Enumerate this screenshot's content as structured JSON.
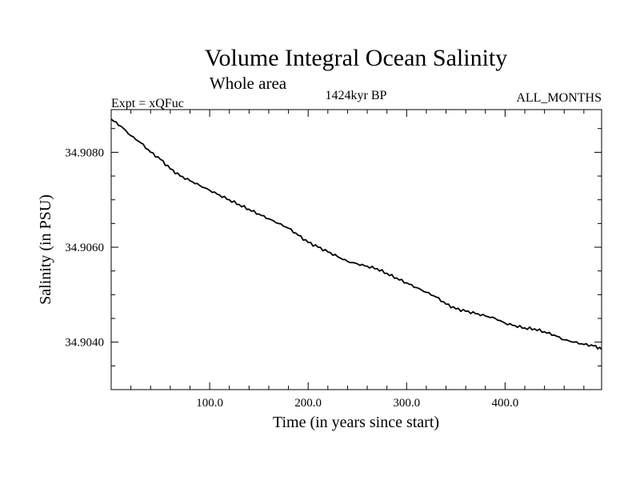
{
  "chart_data": {
    "type": "line",
    "title": "Volume Integral Ocean Salinity",
    "subtitle": "Whole area",
    "left_label": "Expt = xQFuc",
    "center_label": "1424kyr BP",
    "right_label": "ALL_MONTHS",
    "xlabel": "Time (in years since start)",
    "ylabel": "Salinity (in PSU)",
    "xlim": [
      0,
      498
    ],
    "ylim": [
      34.903,
      34.9089
    ],
    "x_ticks": [
      100,
      200,
      300,
      400
    ],
    "x_tick_labels": [
      "100.0",
      "200.0",
      "300.0",
      "400.0"
    ],
    "y_ticks": [
      34.904,
      34.906,
      34.908
    ],
    "y_tick_labels": [
      "34.9040",
      "34.9060",
      "34.9080"
    ],
    "series": [
      {
        "name": "salinity",
        "x": [
          0,
          10,
          20,
          30,
          40,
          50,
          60,
          70,
          80,
          90,
          100,
          110,
          120,
          130,
          140,
          150,
          160,
          170,
          180,
          190,
          200,
          210,
          220,
          230,
          240,
          250,
          260,
          270,
          280,
          290,
          300,
          310,
          320,
          330,
          340,
          350,
          360,
          370,
          380,
          390,
          400,
          410,
          420,
          430,
          440,
          450,
          460,
          470,
          480,
          490,
          498
        ],
        "values": [
          34.9087,
          34.90855,
          34.90835,
          34.9082,
          34.908,
          34.90785,
          34.90765,
          34.9075,
          34.9074,
          34.9073,
          34.9072,
          34.9071,
          34.907,
          34.9069,
          34.9068,
          34.9067,
          34.9066,
          34.9065,
          34.9064,
          34.90625,
          34.9061,
          34.906,
          34.9059,
          34.9058,
          34.9057,
          34.90565,
          34.9056,
          34.90555,
          34.90545,
          34.90535,
          34.90525,
          34.90515,
          34.90505,
          34.90495,
          34.9048,
          34.9047,
          34.90465,
          34.9046,
          34.90455,
          34.9045,
          34.9044,
          34.90435,
          34.9043,
          34.90428,
          34.90422,
          34.90415,
          34.90405,
          34.904,
          34.90395,
          34.90392,
          34.90385
        ]
      }
    ]
  }
}
